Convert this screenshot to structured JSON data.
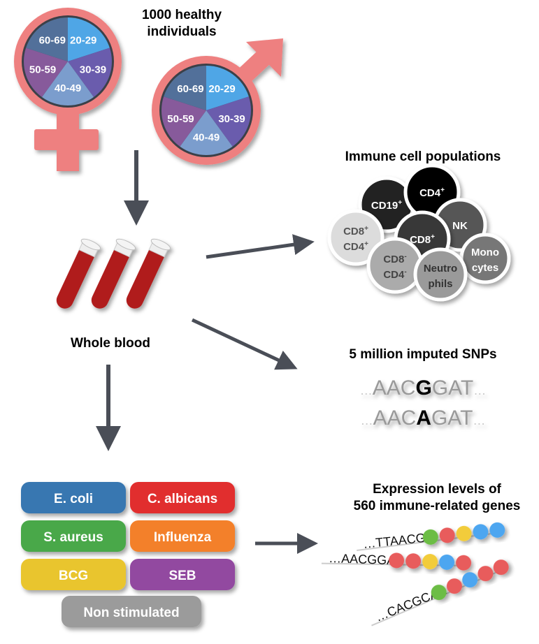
{
  "population": {
    "title_line1": "1000 healthy",
    "title_line2": "individuals",
    "age_groups": [
      "20-29",
      "30-39",
      "40-49",
      "50-59",
      "60-69"
    ],
    "age_colors": [
      "#4fa6e6",
      "#6a5cad",
      "#7b9dcd",
      "#875a9b",
      "#52709a"
    ],
    "symbol_color": "#ee8080",
    "symbols": [
      "female-symbol",
      "male-symbol"
    ]
  },
  "blood": {
    "label": "Whole blood"
  },
  "immune": {
    "title": "Immune cell populations",
    "cells": [
      {
        "l1": "CD19",
        "sup1": "+",
        "l2": "",
        "sup2": "",
        "color": "#222222",
        "text": "#ffffff"
      },
      {
        "l1": "CD4",
        "sup1": "+",
        "l2": "",
        "sup2": "",
        "color": "#050505",
        "text": "#ffffff"
      },
      {
        "l1": "NK",
        "sup1": "",
        "l2": "",
        "sup2": "",
        "color": "#575757",
        "text": "#ffffff"
      },
      {
        "l1": "CD8",
        "sup1": "+",
        "l2": "CD4",
        "sup2": "+",
        "color": "#dcdcdc",
        "text": "#555555"
      },
      {
        "l1": "CD8",
        "sup1": "+",
        "l2": "",
        "sup2": "",
        "color": "#383838",
        "text": "#ffffff"
      },
      {
        "l1": "Mono",
        "sup1": "",
        "l2": "cytes",
        "sup2": "",
        "color": "#777777",
        "text": "#ffffff"
      },
      {
        "l1": "CD8",
        "sup1": "-",
        "l2": "CD4",
        "sup2": "-",
        "color": "#ababab",
        "text": "#444444"
      },
      {
        "l1": "Neutro",
        "sup1": "",
        "l2": "phils",
        "sup2": "",
        "color": "#9a9a9a",
        "text": "#333333"
      }
    ]
  },
  "snps": {
    "title": "5 million imputed SNPs",
    "rows": [
      {
        "pre": "…",
        "left": "AAC",
        "allele": "G",
        "right": "GAT",
        "post": "…"
      },
      {
        "pre": "…",
        "left": "AAC",
        "allele": "A",
        "right": "GAT",
        "post": "…"
      }
    ]
  },
  "stimuli": {
    "buttons": [
      {
        "label": "E. coli",
        "color": "#3877b1"
      },
      {
        "label": "C. albicans",
        "color": "#e12e2d"
      },
      {
        "label": "S. aureus",
        "color": "#4aa84a"
      },
      {
        "label": "Influenza",
        "color": "#f3802b"
      },
      {
        "label": "BCG",
        "color": "#e9c52e"
      },
      {
        "label": "SEB",
        "color": "#924aa0"
      },
      {
        "label": "Non stimulated",
        "color": "#9b9b9b"
      }
    ]
  },
  "expression": {
    "title_line1": "Expression levels of",
    "title_line2": "560 immune-related genes",
    "sequences": [
      {
        "text": "…TTAACGG",
        "beads": [
          "#6cbd45",
          "#e85c5c",
          "#f2cc3a",
          "#4ea6f0",
          "#4ea6f0"
        ]
      },
      {
        "text": "…AACGGAT",
        "beads": [
          "#e85c5c",
          "#e85c5c",
          "#f2cc3a",
          "#4ea6f0",
          "#e85c5c"
        ]
      },
      {
        "text": "…CACGCAA",
        "beads": [
          "#6cbd45",
          "#e85c5c",
          "#4ea6f0",
          "#e85c5c",
          "#e85c5c"
        ]
      }
    ]
  }
}
